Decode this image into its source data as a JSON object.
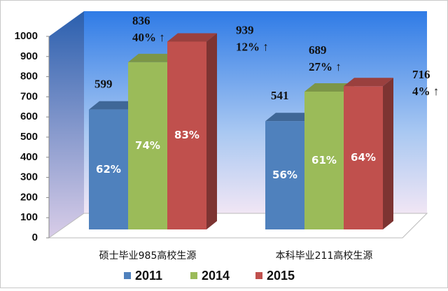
{
  "chart_data": {
    "type": "bar3d",
    "categories": [
      "硕士毕业985高校生源",
      "本科毕业211高校生源"
    ],
    "series": [
      {
        "name": "2011",
        "color": "#4f81bd",
        "values": [
          599,
          541
        ],
        "percent_labels": [
          "62%",
          "56%"
        ]
      },
      {
        "name": "2014",
        "color": "#9bbb59",
        "values": [
          836,
          689
        ],
        "percent_labels": [
          "74%",
          "61%"
        ],
        "growth_labels": [
          "40% ↑",
          "27% ↑"
        ]
      },
      {
        "name": "2015",
        "color": "#c0504d",
        "values": [
          939,
          716
        ],
        "percent_labels": [
          "83%",
          "64%"
        ],
        "growth_labels": [
          "12% ↑",
          "4% ↑"
        ]
      }
    ],
    "ylim": [
      0,
      1000
    ],
    "yticks": [
      0,
      100,
      200,
      300,
      400,
      500,
      600,
      700,
      800,
      900,
      1000
    ],
    "legend": "bottom"
  }
}
